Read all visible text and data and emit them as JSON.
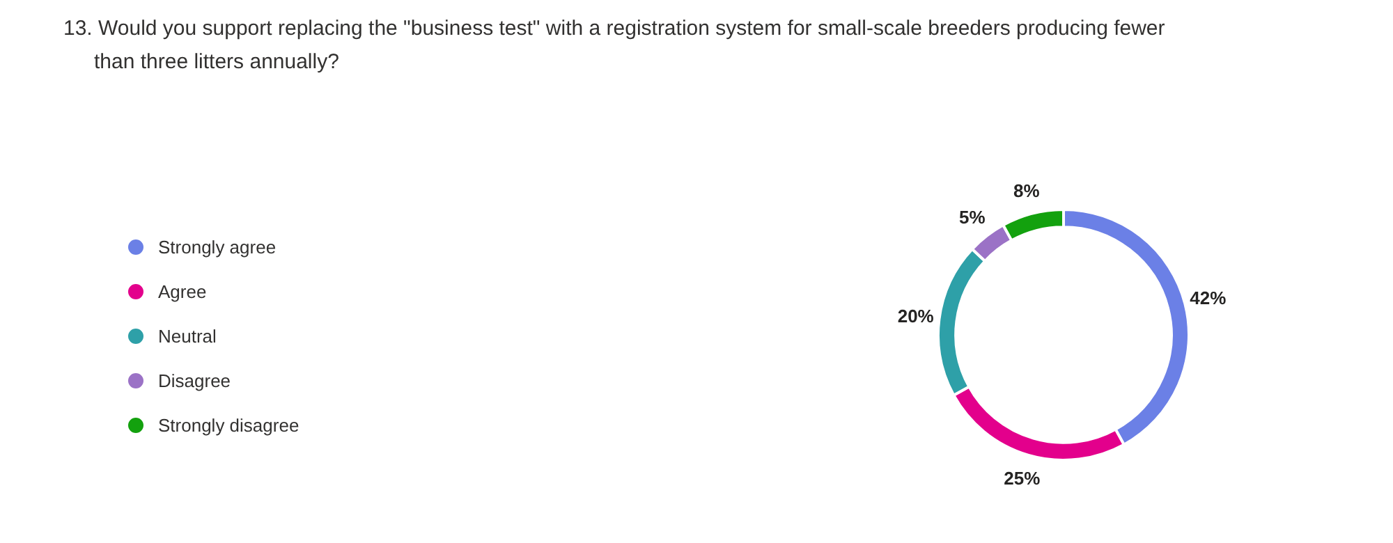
{
  "chart_data": {
    "type": "donut",
    "title": "13. Would you support replacing the \"business test\" with a registration system for small-scale breeders producing fewer than three litters annually?",
    "categories": [
      "Strongly agree",
      "Agree",
      "Neutral",
      "Disagree",
      "Strongly disagree"
    ],
    "values": [
      42,
      25,
      20,
      5,
      8
    ],
    "colors": [
      "#6b80e6",
      "#e3008c",
      "#2ea0a8",
      "#9b72c6",
      "#13a10e"
    ],
    "value_labels": [
      "42%",
      "25%",
      "20%",
      "5%",
      "8%"
    ],
    "legend": "left"
  }
}
